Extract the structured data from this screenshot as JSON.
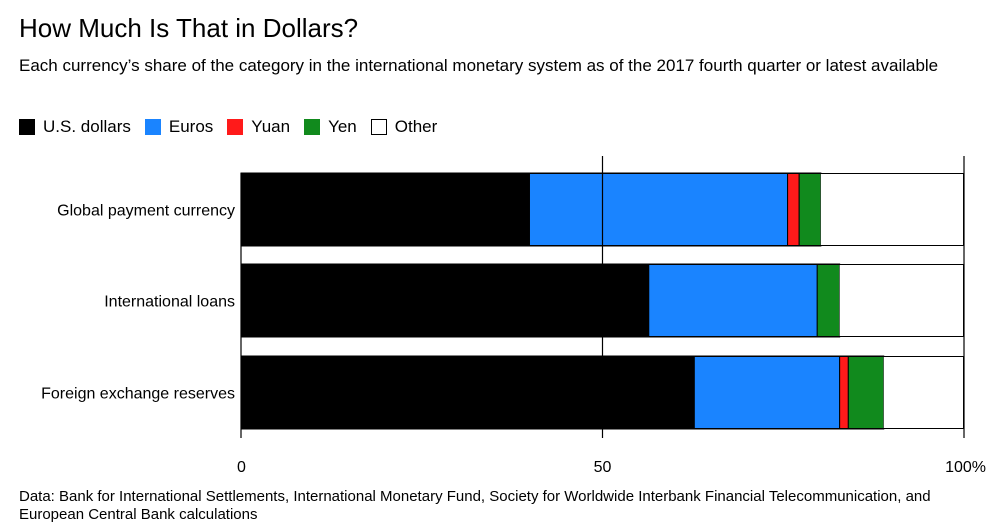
{
  "title": "How Much Is That in Dollars?",
  "subtitle": "Each currency’s share of the category in the international monetary system as of the 2017 fourth quarter or latest available",
  "legend": [
    {
      "label": "U.S. dollars",
      "color": "#000000"
    },
    {
      "label": "Euros",
      "color": "#1a84ff"
    },
    {
      "label": "Yuan",
      "color": "#ff1a1a"
    },
    {
      "label": "Yen",
      "color": "#118a1d"
    },
    {
      "label": "Other",
      "color": "#ffffff"
    }
  ],
  "source": "Data: Bank for International Settlements, International Monetary Fund, Society for Worldwide Interbank Financial Telecommunication, and European Central Bank calculations",
  "chart_data": {
    "type": "bar",
    "orientation": "horizontal",
    "stacked": true,
    "categories": [
      "Global payment currency",
      "International loans",
      "Foreign exchange reserves"
    ],
    "series": [
      {
        "name": "U.S. dollars",
        "color": "#000000",
        "values": [
          39.9,
          56.4,
          62.7
        ]
      },
      {
        "name": "Euros",
        "color": "#1a84ff",
        "values": [
          35.7,
          23.3,
          20.1
        ]
      },
      {
        "name": "Yuan",
        "color": "#ff1a1a",
        "values": [
          1.6,
          0.0,
          1.2
        ]
      },
      {
        "name": "Yen",
        "color": "#118a1d",
        "values": [
          3.0,
          3.1,
          4.9
        ]
      },
      {
        "name": "Other",
        "color": "#ffffff",
        "values": [
          19.8,
          17.2,
          11.1
        ]
      }
    ],
    "xlim": [
      0,
      100
    ],
    "xticks": [
      0,
      50,
      100
    ],
    "xtick_labels": [
      "0",
      "50",
      "100%"
    ],
    "gridlines": [
      50,
      100
    ]
  }
}
